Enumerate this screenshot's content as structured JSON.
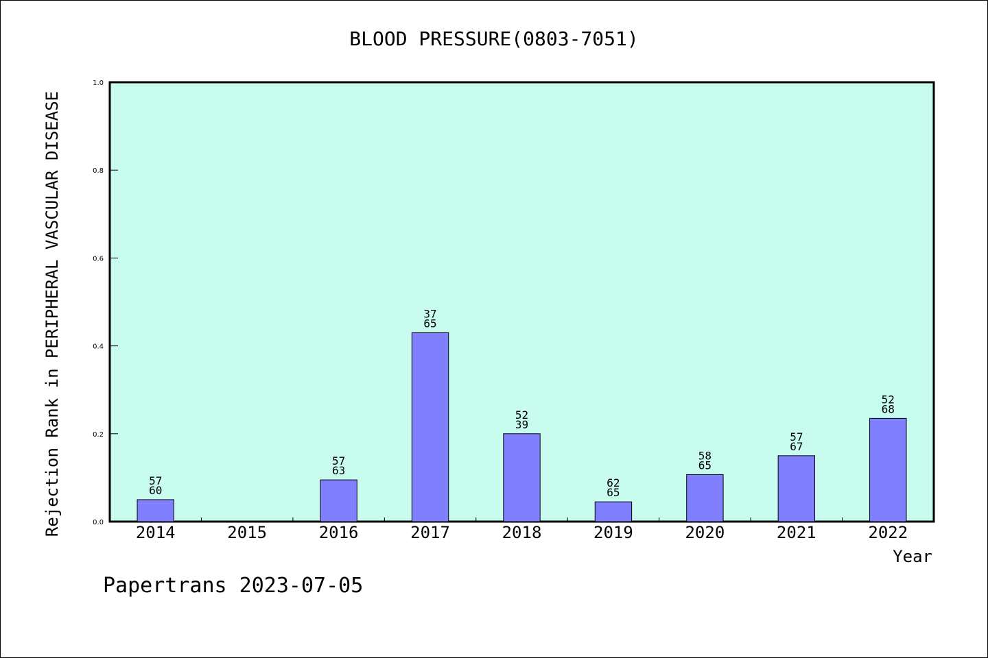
{
  "chart_data": {
    "type": "bar",
    "title": "BLOOD PRESSURE(0803-7051)",
    "xlabel": "Year",
    "ylabel": "Rejection Rank in PERIPHERAL VASCULAR DISEASE",
    "ylim": [
      0,
      1.0
    ],
    "yticks": [
      "0.0",
      "0.2",
      "0.4",
      "0.6",
      "0.8",
      "1.0"
    ],
    "categories": [
      "2014",
      "2015",
      "2016",
      "2017",
      "2018",
      "2019",
      "2020",
      "2021",
      "2022"
    ],
    "values": [
      0.05,
      0,
      0.095,
      0.43,
      0.2,
      0.045,
      0.107,
      0.15,
      0.235
    ],
    "labels": [
      [
        "57",
        "60"
      ],
      null,
      [
        "57",
        "63"
      ],
      [
        "37",
        "65"
      ],
      [
        "52",
        "39"
      ],
      [
        "62",
        "65"
      ],
      [
        "58",
        "65"
      ],
      [
        "57",
        "67"
      ],
      [
        "52",
        "68"
      ]
    ],
    "grid": false,
    "colors": {
      "plot_bg": "#c8fcef",
      "bar": "#8080ff",
      "axis": "#000000"
    }
  },
  "footer": {
    "text": "Papertrans 2023-07-05"
  }
}
